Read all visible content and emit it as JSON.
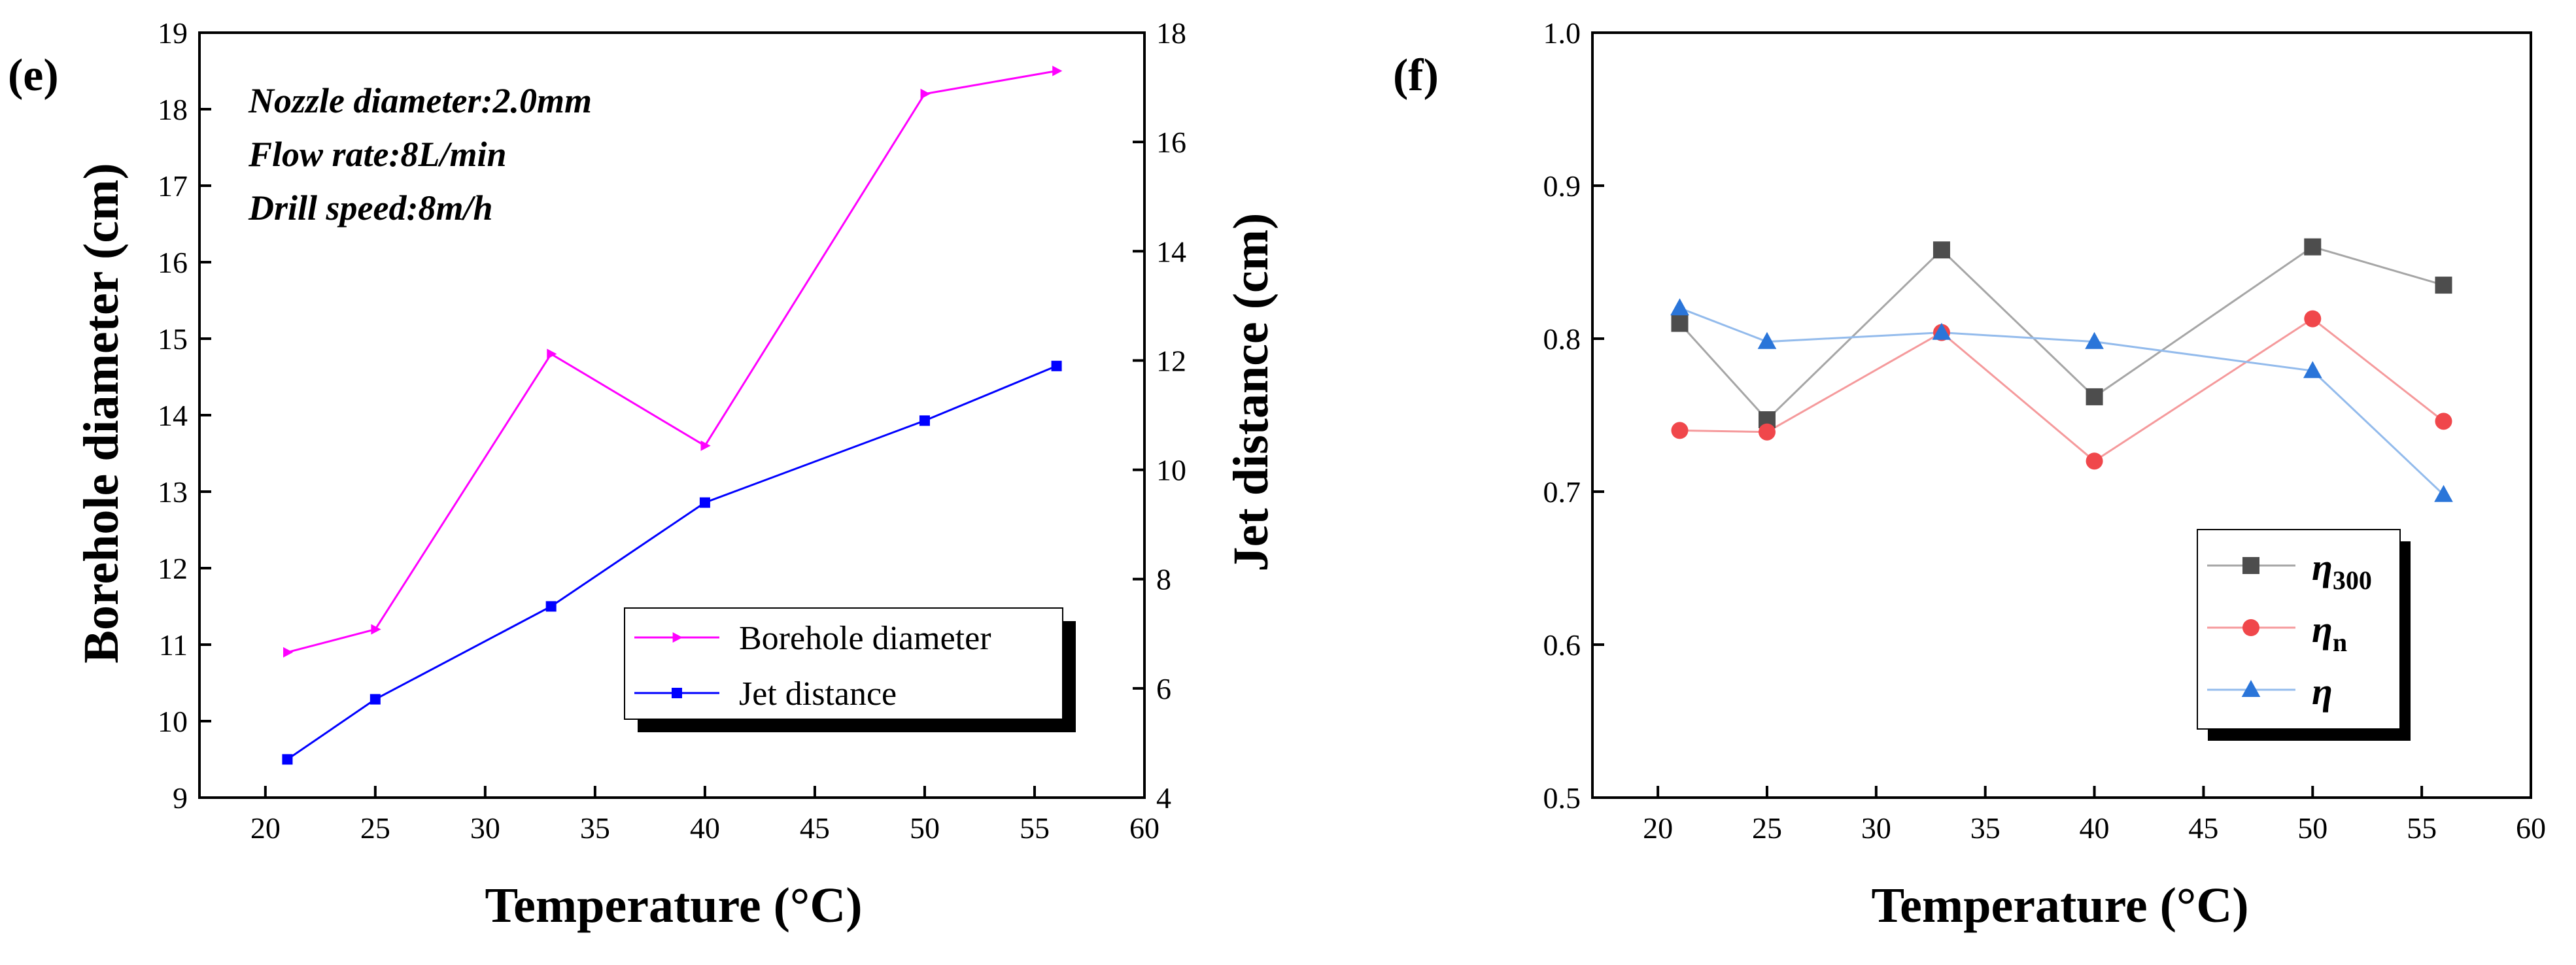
{
  "chart_data": [
    {
      "type": "line",
      "panel_label": "(e)",
      "xlabel": "Temperature (°C)",
      "ylabel": "Borehole diameter (cm)",
      "y2label": "Jet distance (cm)",
      "xlim": [
        17,
        60
      ],
      "ylim": [
        9,
        19
      ],
      "y2lim": [
        4,
        18
      ],
      "x_ticks": [
        20,
        25,
        30,
        35,
        40,
        45,
        50,
        55,
        60
      ],
      "y_ticks": [
        9,
        10,
        11,
        12,
        13,
        14,
        15,
        16,
        17,
        18,
        19
      ],
      "y2_ticks": [
        4,
        6,
        8,
        10,
        12,
        14,
        16,
        18
      ],
      "x": [
        21,
        25,
        33,
        40,
        50,
        56
      ],
      "series": [
        {
          "name": "Borehole diameter",
          "axis": "left",
          "color": "#ff00ff",
          "marker": "triangle-right",
          "values": [
            10.9,
            11.2,
            14.8,
            13.6,
            18.2,
            18.5
          ]
        },
        {
          "name": "Jet distance",
          "axis": "right",
          "color": "#0000ff",
          "marker": "square",
          "values": [
            4.7,
            5.8,
            7.5,
            9.4,
            10.9,
            11.9
          ]
        }
      ],
      "annotations": [
        "Nozzle diameter:2.0mm",
        "Flow rate:8L/min",
        "Drill speed:8m/h"
      ],
      "legend_position": "lower-right"
    },
    {
      "type": "line",
      "panel_label": "(f)",
      "xlabel": "Temperature (°C)",
      "ylabel": "",
      "xlim": [
        17,
        60
      ],
      "ylim": [
        0.5,
        1.0
      ],
      "x_ticks": [
        20,
        25,
        30,
        35,
        40,
        45,
        50,
        55,
        60
      ],
      "y_ticks": [
        "0.5",
        "0.6",
        "0.7",
        "0.8",
        "0.9",
        "1.0"
      ],
      "x": [
        21,
        25,
        33,
        40,
        50,
        56
      ],
      "series": [
        {
          "name": "η300",
          "symbol": "η",
          "subscript": "300",
          "color": "#4d4d4d",
          "line_color": "#a6a6a6",
          "marker": "square",
          "values": [
            0.81,
            0.747,
            0.858,
            0.762,
            0.86,
            0.835
          ]
        },
        {
          "name": "ηn",
          "symbol": "η",
          "subscript": "n",
          "color": "#f0474b",
          "line_color": "#f59a9c",
          "marker": "circle",
          "values": [
            0.74,
            0.739,
            0.804,
            0.72,
            0.813,
            0.746
          ]
        },
        {
          "name": "η",
          "symbol": "η",
          "subscript": "",
          "color": "#2a75d9",
          "line_color": "#93bbec",
          "marker": "triangle-up",
          "values": [
            0.82,
            0.798,
            0.804,
            0.798,
            0.779,
            0.698
          ]
        }
      ],
      "legend_position": "lower-right"
    }
  ]
}
